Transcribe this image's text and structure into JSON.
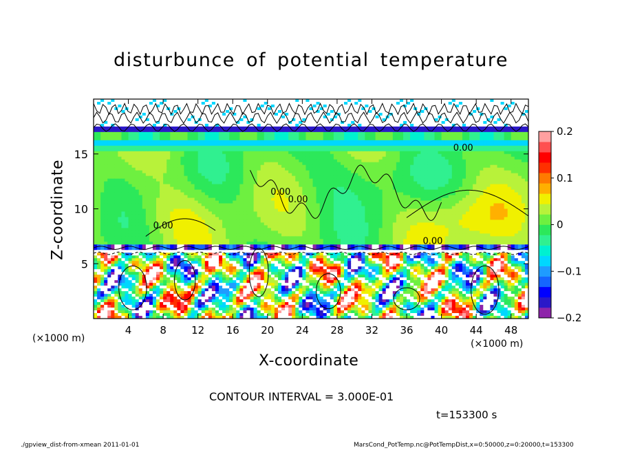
{
  "chart_data": {
    "type": "heatmap",
    "title": "disturbunce of potential temperature",
    "xlabel": "X-coordinate",
    "ylabel": "Z-coordinate",
    "x_unit": "(×1000 m)",
    "y_unit": "(×1000 m)",
    "xlim": [
      0,
      50
    ],
    "ylim": [
      0,
      20
    ],
    "x_ticks": [
      4,
      8,
      12,
      16,
      20,
      24,
      28,
      32,
      36,
      40,
      44,
      48
    ],
    "y_ticks": [
      5,
      10,
      15
    ],
    "colorbar": {
      "range": [
        -0.2,
        0.2
      ],
      "ticks": [
        {
          "value": 0.2,
          "label": "0.2"
        },
        {
          "value": 0.1,
          "label": "0.1"
        },
        {
          "value": 0,
          "label": "0"
        },
        {
          "value": -0.1,
          "label": "−0.1"
        },
        {
          "value": -0.2,
          "label": "−0.2"
        }
      ],
      "colors": [
        "#8e24aa",
        "#2b18c8",
        "#0000ff",
        "#1565ff",
        "#1f9cff",
        "#00d7ff",
        "#00f0d0",
        "#30f090",
        "#2ce85a",
        "#6ef040",
        "#b8f23a",
        "#f0f000",
        "#ffb000",
        "#ff7a00",
        "#ff3000",
        "#ff0000",
        "#ff5050",
        "#ffa0a0"
      ]
    },
    "contour_labels": [
      "0.00",
      "0.00",
      "0.00",
      "0.00",
      "0.00"
    ],
    "contour_interval": "CONTOUR INTERVAL = 3.000E-01",
    "time": "t=153300 s"
  },
  "footer": {
    "left": "./gpview_dist-from-xmean 2011-01-01",
    "right": "MarsCond_PotTemp.nc@PotTempDist,x=0:50000,z=0:20000,t=153300"
  }
}
